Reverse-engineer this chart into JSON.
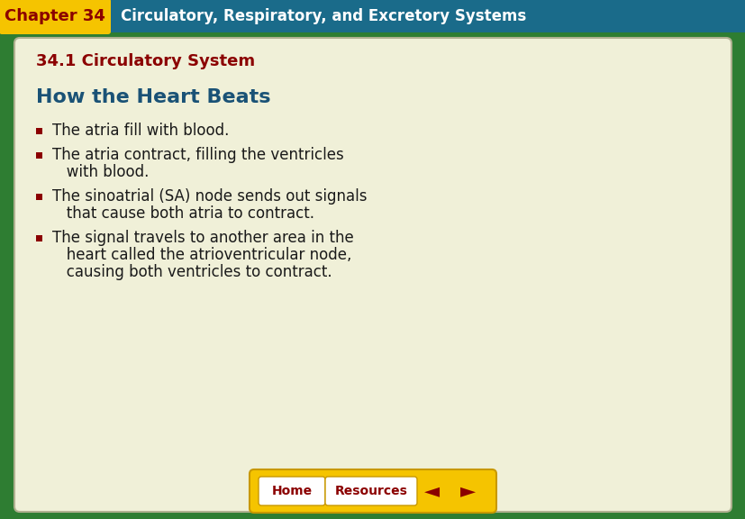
{
  "fig_width": 8.28,
  "fig_height": 5.76,
  "bg_outer": "#2e7d32",
  "bg_header_yellow": "#f5c400",
  "bg_header_teal": "#1a6b8a",
  "bg_main": "#f0f0d8",
  "chapter_label": "Chapter 34",
  "chapter_label_color": "#8b0000",
  "header_title": "Circulatory, Respiratory, and Excretory Systems",
  "header_title_color": "#ffffff",
  "section_title": "34.1 Circulatory System",
  "section_title_color": "#8b0000",
  "slide_title": "How the Heart Beats",
  "slide_title_color": "#1a5276",
  "bullet_color": "#8b0000",
  "text_color": "#1a1a1a",
  "bullet_lines": [
    [
      "The atria fill with blood."
    ],
    [
      "The atria contract, filling the ventricles",
      "   with blood."
    ],
    [
      "The sinoatrial (SA) node sends out signals",
      "   that cause both atria to contract."
    ],
    [
      "The signal travels to another area in the",
      "   heart called the atrioventricular node,",
      "   causing both ventricles to contract."
    ]
  ],
  "nav_bar_color": "#f5c400",
  "nav_btn_color": "#ffffff",
  "nav_btn_text_color": "#8b0000",
  "nav_arrow_color": "#8b0000",
  "home_label": "Home",
  "resources_label": "Resources"
}
